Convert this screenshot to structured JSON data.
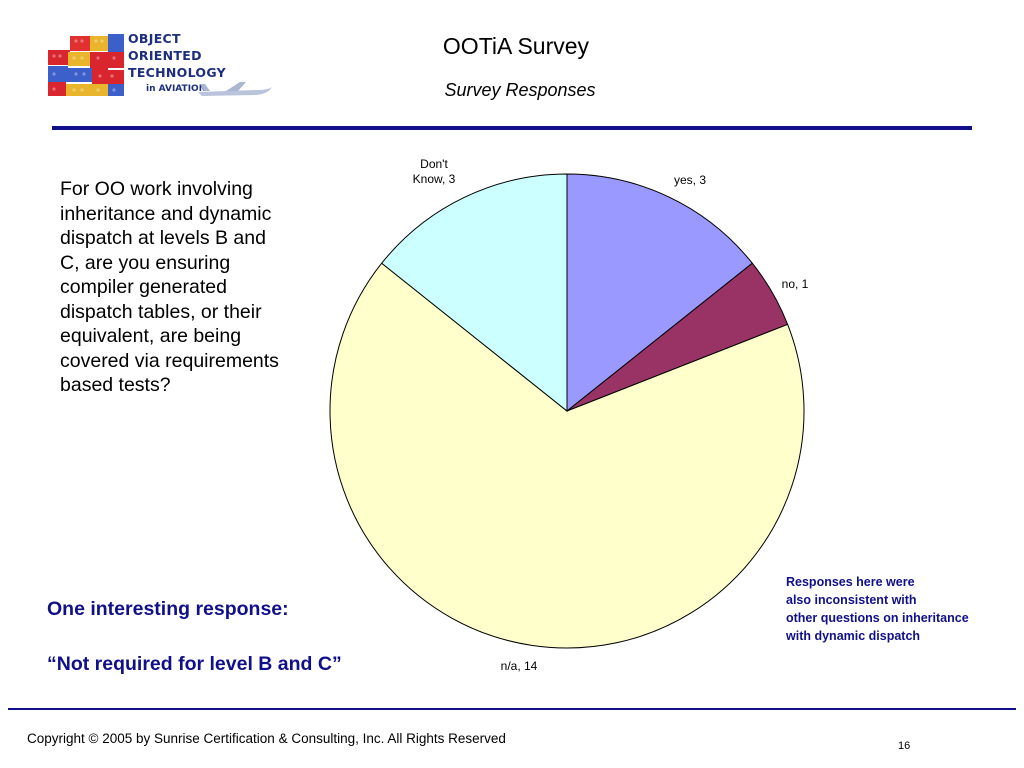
{
  "logo": {
    "line1": "OBJECT",
    "line2": "ORIENTED",
    "line3": "TECHNOLOGY",
    "line4": "in AVIATION",
    "icon": "airplane-icon"
  },
  "header": {
    "title": "OOTiA Survey",
    "subtitle": "Survey Responses"
  },
  "question": "For OO work involving inheritance and dynamic dispatch at levels B and C, are you ensuring compiler generated dispatch tables, or their equivalent, are being covered via requirements based tests?",
  "chart_data": {
    "type": "pie",
    "title": "",
    "slices": [
      {
        "label": "yes",
        "value": 3,
        "color": "#9999ff",
        "display": "yes, 3"
      },
      {
        "label": "no",
        "value": 1,
        "color": "#993366",
        "display": "no, 1"
      },
      {
        "label": "n/a",
        "value": 14,
        "color": "#ffffcc",
        "display": "n/a, 14"
      },
      {
        "label": "Don't Know",
        "value": 3,
        "color": "#ccffff",
        "display": "Don't Know, 3"
      }
    ],
    "start_angle_deg": 0,
    "direction": "clockwise",
    "legend": "none"
  },
  "note": {
    "line1": "Responses here were",
    "line2": "also inconsistent with",
    "line3": "other questions on inheritance",
    "line4": "with dynamic dispatch"
  },
  "interesting": {
    "heading": "One interesting response:",
    "quote": "“Not required for level B and C”"
  },
  "footer": {
    "copyright": "Copyright © 2005 by Sunrise Certification & Consulting, Inc.  All Rights Reserved",
    "page_number": "16"
  },
  "colors": {
    "accent": "#10108a",
    "logo_text": "#1c2f7e"
  }
}
